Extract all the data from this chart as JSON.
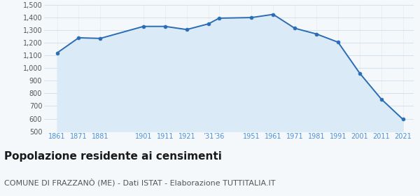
{
  "years": [
    1861,
    1871,
    1881,
    1901,
    1911,
    1921,
    1931,
    1936,
    1951,
    1961,
    1971,
    1981,
    1991,
    2001,
    2011,
    2021
  ],
  "x_labels": [
    "1861",
    "1871",
    "1881",
    "1901",
    "1911",
    "1921",
    "’31",
    "’36",
    "1951",
    "1961",
    "1971",
    "1981",
    "1991",
    "2001",
    "2011",
    "2021"
  ],
  "population": [
    1120,
    1240,
    1235,
    1330,
    1330,
    1305,
    1350,
    1395,
    1400,
    1425,
    1315,
    1270,
    1205,
    960,
    755,
    595
  ],
  "line_color": "#2a6db5",
  "fill_color": "#daeaf7",
  "marker_color": "#2a6db5",
  "grid_color_h": "#c8d8e8",
  "grid_color_v": "#c8d8e8",
  "background_color": "#f5f8fb",
  "plot_bg_color": "#f5f8fb",
  "ylim": [
    500,
    1500
  ],
  "yticks": [
    500,
    600,
    700,
    800,
    900,
    1000,
    1100,
    1200,
    1300,
    1400,
    1500
  ],
  "ytick_labels": [
    "500",
    "600",
    "700",
    "800",
    "900",
    "1,000",
    "1,100",
    "1,200",
    "1,300",
    "1,400",
    "1,500"
  ],
  "xlabel_color": "#4a90d9",
  "ylabel_color": "#555555",
  "title": "Popolazione residente ai censimenti",
  "subtitle": "COMUNE DI FRAZZANÒ (ME) - Dati ISTAT - Elaborazione TUTTITALIA.IT",
  "title_fontsize": 11,
  "subtitle_fontsize": 8,
  "x_spacing": [
    0,
    1,
    2,
    4,
    5,
    6,
    7,
    7.5,
    9,
    10,
    11,
    12,
    13,
    14,
    15,
    16
  ]
}
